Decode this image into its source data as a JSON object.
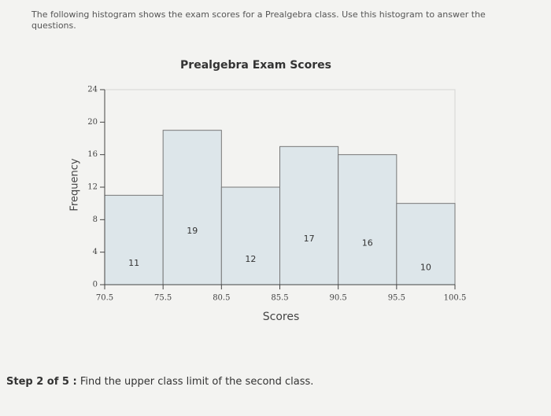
{
  "intro": "The following histogram shows the exam scores for a Prealgebra class. Use this histogram to answer the questions.",
  "chart_data": {
    "type": "histogram",
    "title": "Prealgebra Exam Scores",
    "x_label": "Scores",
    "y_label": "Frequency",
    "bins": [
      70.5,
      75.5,
      80.5,
      85.5,
      90.5,
      95.5,
      100.5
    ],
    "values": [
      11,
      19,
      12,
      17,
      16,
      10
    ],
    "color": "#dde6ea",
    "xlim": [
      70.5,
      100.5
    ],
    "xticks": [
      70.5,
      75.5,
      80.5,
      85.5,
      90.5,
      95.5,
      100.5
    ],
    "ylim": [
      0,
      24
    ],
    "yticks": [
      0,
      4,
      8,
      12,
      16,
      20,
      24
    ]
  },
  "step": {
    "label": "Step 2 of 5 :",
    "text": "Find the upper class limit of the second class."
  }
}
